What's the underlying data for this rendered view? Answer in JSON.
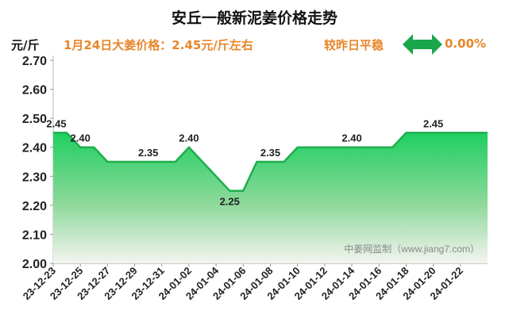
{
  "header": {
    "title": "安丘一般新泥姜价格走势",
    "unit_label": "元/斤",
    "price_note": "1月24日大姜价格：2.45元/斤左右",
    "compare_label": "较昨日平稳",
    "change_value": "0.00%"
  },
  "colors": {
    "line": "#1fae4e",
    "fill_top": "#1fcf60",
    "fill_bottom": "#f4f4f0",
    "accent_text": "#e8862a",
    "arrow": "#1aa64a"
  },
  "icons": {
    "trend_arrow": "double-headed-arrow-icon"
  },
  "chart_data": {
    "type": "area",
    "title": "安丘一般新泥姜价格走势",
    "ylabel": "元/斤",
    "xlabel": "",
    "ylim": [
      2.0,
      2.7
    ],
    "yticks": [
      "2.00",
      "2.10",
      "2.20",
      "2.30",
      "2.40",
      "2.50",
      "2.60",
      "2.70"
    ],
    "x": [
      "23-12-23",
      "23-12-24",
      "23-12-25",
      "23-12-26",
      "23-12-27",
      "23-12-28",
      "23-12-29",
      "23-12-30",
      "23-12-31",
      "24-01-01",
      "24-01-02",
      "24-01-03",
      "24-01-04",
      "24-01-05",
      "24-01-06",
      "24-01-07",
      "24-01-08",
      "24-01-09",
      "24-01-10",
      "24-01-11",
      "24-01-12",
      "24-01-13",
      "24-01-14",
      "24-01-15",
      "24-01-16",
      "24-01-17",
      "24-01-18",
      "24-01-19",
      "24-01-20",
      "24-01-21",
      "24-01-22",
      "24-01-23",
      "24-01-24"
    ],
    "x_tick_labels": [
      "23-12-23",
      "23-12-25",
      "23-12-27",
      "23-12-29",
      "23-12-31",
      "24-01-02",
      "24-01-04",
      "24-01-06",
      "24-01-08",
      "24-01-10",
      "24-01-12",
      "24-01-14",
      "24-01-16",
      "24-01-18",
      "24-01-20",
      "24-01-22"
    ],
    "series": [
      {
        "values": [
          2.45,
          2.45,
          2.4,
          2.4,
          2.35,
          2.35,
          2.35,
          2.35,
          2.35,
          2.35,
          2.4,
          2.35,
          2.3,
          2.25,
          2.25,
          2.35,
          2.35,
          2.35,
          2.4,
          2.4,
          2.4,
          2.4,
          2.4,
          2.4,
          2.4,
          2.4,
          2.45,
          2.45,
          2.45,
          2.45,
          2.45,
          2.45,
          2.45
        ]
      }
    ],
    "data_labels": [
      {
        "index": 0,
        "text": "2.45"
      },
      {
        "index": 2,
        "text": "2.40"
      },
      {
        "index": 7,
        "text": "2.35"
      },
      {
        "index": 10,
        "text": "2.40"
      },
      {
        "index": 13,
        "text": "2.25"
      },
      {
        "index": 16,
        "text": "2.35"
      },
      {
        "index": 22,
        "text": "2.40"
      },
      {
        "index": 28,
        "text": "2.45"
      }
    ],
    "grid": false,
    "legend": "none",
    "watermark": "中姜网监制（www.jiang7.com）"
  }
}
